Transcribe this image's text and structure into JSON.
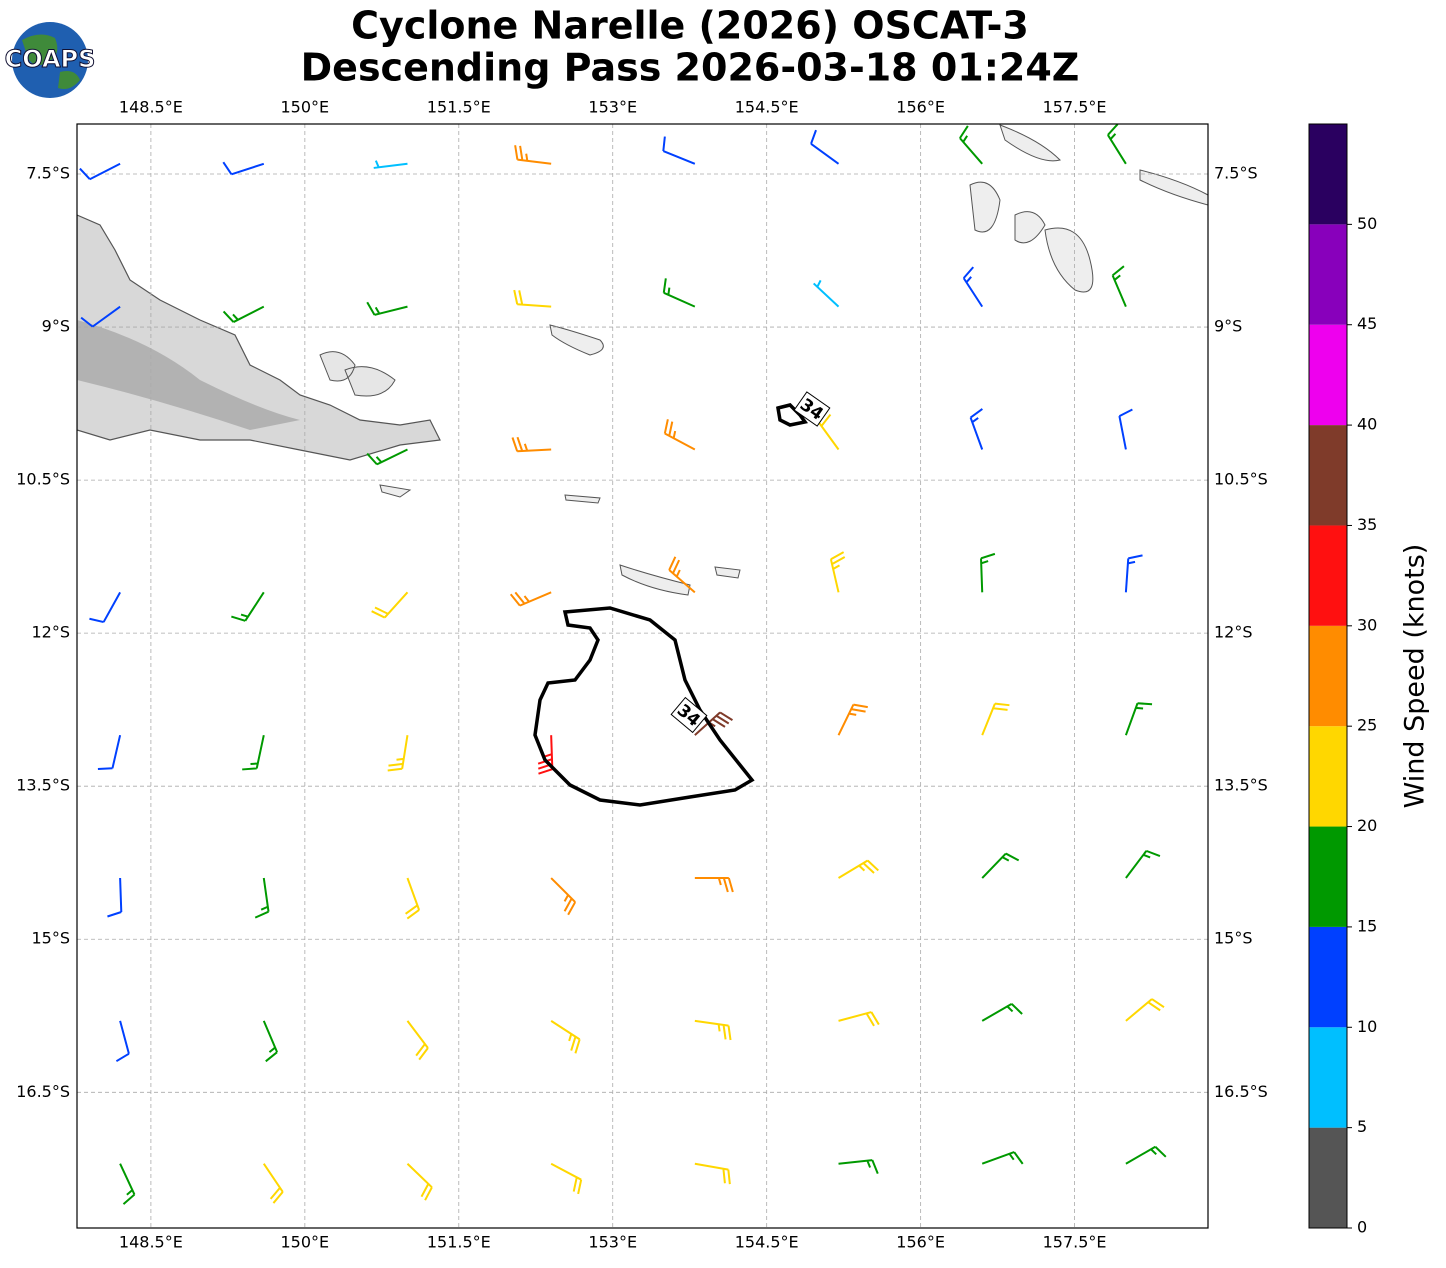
{
  "chart_data": {
    "type": "barbs",
    "logo": "COAPS",
    "title": "Cyclone Narelle (2026) OSCAT-3",
    "subtitle": "Descending Pass 2026-03-18 01:24Z",
    "xlim": [
      147.78,
      158.8
    ],
    "ylim": [
      -17.83,
      -7.01
    ],
    "xticks": [
      {
        "value": 148.5,
        "label": "148.5°E"
      },
      {
        "value": 150,
        "label": "150°E"
      },
      {
        "value": 151.5,
        "label": "151.5°E"
      },
      {
        "value": 153,
        "label": "153°E"
      },
      {
        "value": 154.5,
        "label": "154.5°E"
      },
      {
        "value": 156,
        "label": "156°E"
      },
      {
        "value": 157.5,
        "label": "157.5°E"
      }
    ],
    "yticks": [
      {
        "value": -7.5,
        "label": "7.5°S"
      },
      {
        "value": -9,
        "label": "9°S"
      },
      {
        "value": -10.5,
        "label": "10.5°S"
      },
      {
        "value": -12,
        "label": "12°S"
      },
      {
        "value": -13.5,
        "label": "13.5°S"
      },
      {
        "value": -15,
        "label": "15°S"
      },
      {
        "value": -16.5,
        "label": "16.5°S"
      }
    ],
    "grid": true,
    "x": [
      148.2,
      149.6,
      151.0,
      152.4,
      153.8,
      155.2,
      156.6,
      158.0,
      148.2,
      149.6,
      151.0,
      152.4,
      153.8,
      155.2,
      156.6,
      158.0,
      148.2,
      149.6,
      151.0,
      152.4,
      153.8,
      155.2,
      156.6,
      158.0,
      148.2,
      149.6,
      151.0,
      152.4,
      153.8,
      155.2,
      156.6,
      158.0,
      148.2,
      149.6,
      151.0,
      152.4,
      153.8,
      155.2,
      156.6,
      158.0,
      148.2,
      149.6,
      151.0,
      152.4,
      153.8,
      155.2,
      156.6,
      158.0,
      148.2,
      149.6,
      151.0,
      152.4,
      153.8,
      155.2,
      156.6,
      158.0,
      148.2,
      149.6,
      151.0,
      152.4,
      153.8,
      155.2,
      156.6,
      158.0
    ],
    "y": [
      -7.4,
      -7.4,
      -7.4,
      -7.4,
      -7.4,
      -7.4,
      -7.4,
      -7.4,
      -8.8,
      -8.8,
      -8.8,
      -8.8,
      -8.8,
      -8.8,
      -8.8,
      -8.8,
      -10.2,
      -10.2,
      -10.2,
      -10.2,
      -10.2,
      -10.2,
      -10.2,
      -10.2,
      -11.6,
      -11.6,
      -11.6,
      -11.6,
      -11.6,
      -11.6,
      -11.6,
      -11.6,
      -13.0,
      -13.0,
      -13.0,
      -13.0,
      -13.0,
      -13.0,
      -13.0,
      -13.0,
      -14.4,
      -14.4,
      -14.4,
      -14.4,
      -14.4,
      -14.4,
      -14.4,
      -14.4,
      -15.8,
      -15.8,
      -15.8,
      -15.8,
      -15.8,
      -15.8,
      -15.8,
      -15.8,
      -17.2,
      -17.2,
      -17.2,
      -17.2,
      -17.2,
      -17.2,
      -17.2,
      -17.2
    ],
    "speed": [
      12,
      12,
      8,
      25,
      12,
      12,
      17,
      17,
      12,
      17,
      18,
      22,
      18,
      8,
      13,
      16,
      null,
      null,
      18,
      27,
      28,
      22,
      13,
      12,
      12,
      16,
      22,
      28,
      27,
      23,
      18,
      13,
      11,
      17,
      24,
      33,
      38,
      28,
      21,
      17,
      12,
      17,
      22,
      27,
      27,
      23,
      19,
      17,
      12,
      17,
      21,
      24,
      23,
      21,
      19,
      21,
      17,
      21,
      22,
      22,
      21,
      18,
      19,
      18
    ],
    "direction": [
      243,
      252,
      263,
      277,
      292,
      306,
      319,
      328,
      234,
      243,
      256,
      274,
      294,
      313,
      327,
      337,
      null,
      null,
      244,
      267,
      298,
      324,
      340,
      349,
      209,
      213,
      222,
      247,
      311,
      347,
      358,
      4,
      193,
      192,
      189,
      178,
      48,
      26,
      22,
      20,
      178,
      172,
      160,
      135,
      90,
      59,
      44,
      37,
      165,
      157,
      143,
      123,
      98,
      75,
      60,
      50,
      155,
      146,
      134,
      118,
      100,
      84,
      70,
      60
    ],
    "contour_level": 34,
    "colorbar": {
      "label": "Wind Speed (knots)",
      "lim": [
        0,
        55
      ],
      "ticks": [
        0,
        5,
        10,
        15,
        20,
        25,
        30,
        35,
        40,
        45,
        50
      ],
      "bounds": [
        0,
        5,
        10,
        15,
        20,
        25,
        30,
        35,
        40,
        45,
        50,
        55
      ],
      "colors": [
        "#555555",
        "#00bfff",
        "#0040ff",
        "#009900",
        "#ffd700",
        "#ff8c00",
        "#ff1010",
        "#7f3b2a",
        "#ee00ee",
        "#8800bb",
        "#2a0060"
      ]
    }
  }
}
